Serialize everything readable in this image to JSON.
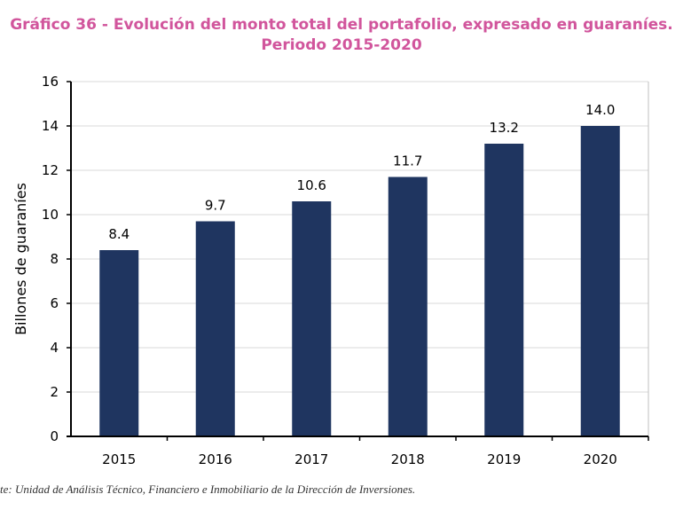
{
  "colors": {
    "title": "#d1559c",
    "bar": "#1f3560",
    "axis": "#000000",
    "grid": "#d9d9d9"
  },
  "chart_data": {
    "type": "bar",
    "title": "Gráfico 36 - Evolución del monto total del portafolio, expresado en guaraníes.",
    "subtitle": "Periodo 2015-2020",
    "ylabel": "Billones de guaraníes",
    "xlabel": "",
    "ylim": [
      0,
      16
    ],
    "yticks": [
      0,
      2,
      4,
      6,
      8,
      10,
      12,
      14,
      16
    ],
    "categories": [
      "2015",
      "2016",
      "2017",
      "2018",
      "2019",
      "2020"
    ],
    "values": [
      8.4,
      9.7,
      10.6,
      11.7,
      13.2,
      14.0
    ],
    "value_labels": [
      "8.4",
      "9.7",
      "10.6",
      "11.7",
      "13.2",
      "14.0"
    ],
    "grid": true,
    "legend": "none"
  },
  "source_text": "te: Unidad de Análisis Técnico, Financiero e Inmobiliario de la Dirección de Inversiones."
}
